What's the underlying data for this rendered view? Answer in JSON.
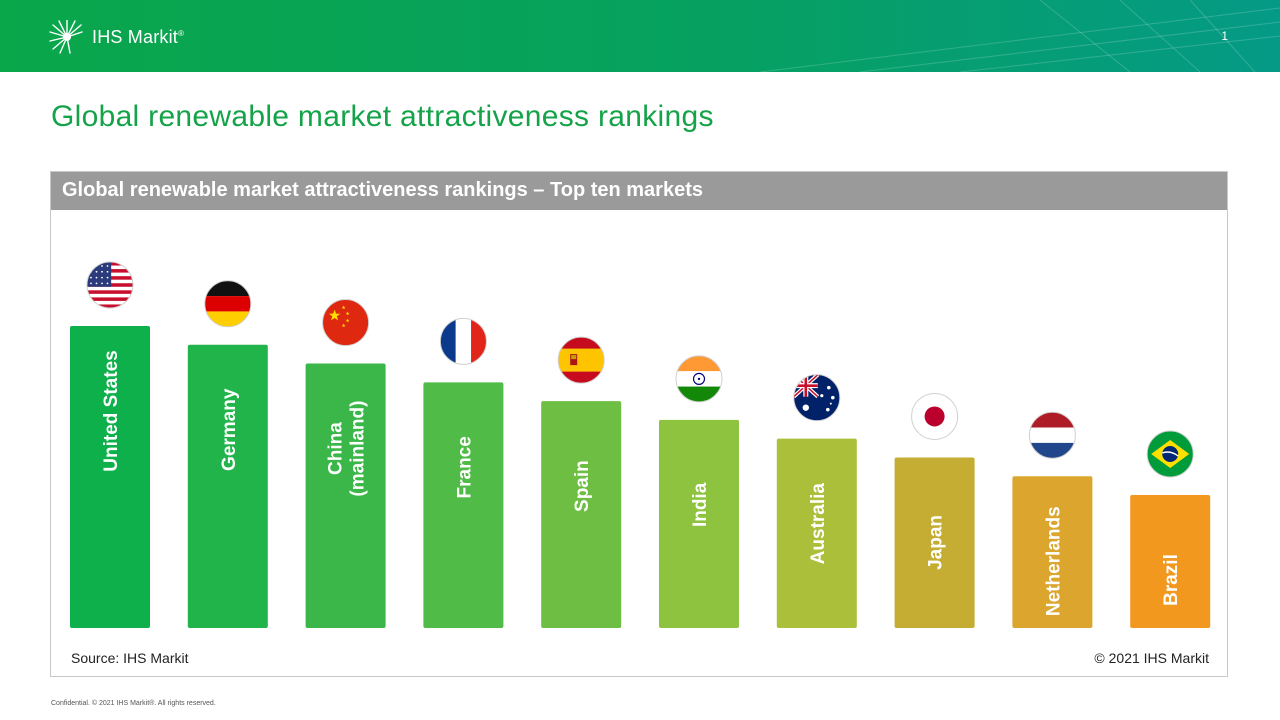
{
  "header": {
    "logo_text": "IHS Markit",
    "logo_mark": "®",
    "page_number": "1"
  },
  "page_title": "Global renewable market attractiveness rankings",
  "panel": {
    "title": "Global renewable market attractiveness rankings – Top ten markets"
  },
  "chart_data": {
    "type": "bar",
    "title": "Global renewable market attractiveness rankings – Top ten markets",
    "categories": [
      "United States",
      "Germany",
      "China (mainland)",
      "France",
      "Spain",
      "India",
      "Australia",
      "Japan",
      "Netherlands",
      "Brazil"
    ],
    "ranks": [
      1,
      2,
      3,
      4,
      5,
      6,
      7,
      8,
      9,
      10
    ],
    "label_lines": [
      [
        "United States"
      ],
      [
        "Germany"
      ],
      [
        "China",
        "(mainland)"
      ],
      [
        "France"
      ],
      [
        "Spain"
      ],
      [
        "India"
      ],
      [
        "Australia"
      ],
      [
        "Japan"
      ],
      [
        "Netherlands"
      ],
      [
        "Brazil"
      ]
    ],
    "bar_colors": [
      "#0db04b",
      "#21b44a",
      "#3ab748",
      "#50bb46",
      "#6dbe43",
      "#8dc33f",
      "#abbf3a",
      "#c5ad33",
      "#dba52e",
      "#f2981f"
    ],
    "flag_icons": [
      "us-flag-icon",
      "germany-flag-icon",
      "china-flag-icon",
      "france-flag-icon",
      "spain-flag-icon",
      "india-flag-icon",
      "australia-flag-icon",
      "japan-flag-icon",
      "netherlands-flag-icon",
      "brazil-flag-icon"
    ],
    "xlabel": "",
    "ylabel": "",
    "grid": false,
    "legend": "none"
  },
  "source_text": "Source: IHS Markit",
  "copyright_text": "© 2021 IHS Markit",
  "footer_text": "Confidential. © 2021 IHS Markit®. All rights reserved.",
  "colors": {
    "banner_green": "#0aa64a",
    "banner_teal": "#059a86",
    "title_green": "#15a34a",
    "panel_header_gray": "#9a9a9a"
  }
}
